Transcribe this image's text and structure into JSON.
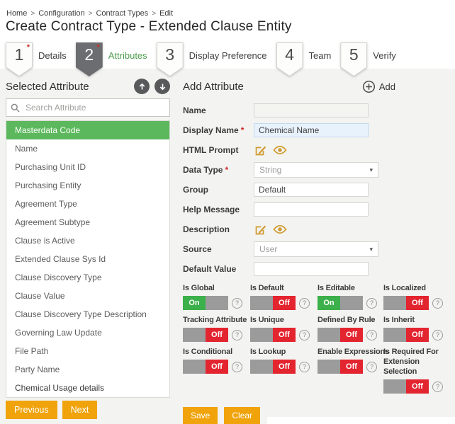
{
  "ui": {
    "required_marker": "*",
    "caret": "▾",
    "help_glyph": "?"
  },
  "breadcrumb": {
    "separator": ">",
    "items": [
      "Home",
      "Configuration",
      "Contract Types",
      "Edit"
    ]
  },
  "page_title": "Create Contract Type - Extended Clause Entity",
  "steps": [
    {
      "number": "1",
      "label": "Details",
      "required": true,
      "active": false
    },
    {
      "number": "2",
      "label": "Attributes",
      "required": true,
      "active": true
    },
    {
      "number": "3",
      "label": "Display Preference",
      "required": false,
      "active": false
    },
    {
      "number": "4",
      "label": "Team",
      "required": false,
      "active": false
    },
    {
      "number": "5",
      "label": "Verify",
      "required": false,
      "active": false
    }
  ],
  "left_panel": {
    "title": "Selected Attribute",
    "search_placeholder": "Search Attribute",
    "selected_index": 0,
    "current_index": 14,
    "items": [
      "Masterdata Code",
      "Name",
      "Purchasing Unit ID",
      "Purchasing Entity",
      "Agreement Type",
      "Agreement Subtype",
      "Clause is Active",
      "Extended Clause Sys Id",
      "Clause Discovery Type",
      "Clause Value",
      "Clause Discovery Type Description",
      "Governing Law Update",
      "File Path",
      "Party Name",
      "Chemical Usage details"
    ]
  },
  "form": {
    "title": "Add Attribute",
    "add_button_label": "Add",
    "fields": {
      "name": {
        "label": "Name",
        "value": ""
      },
      "display_name": {
        "label": "Display Name",
        "required": true,
        "value": "Chemical Name"
      },
      "html_prompt": {
        "label": "HTML Prompt"
      },
      "data_type": {
        "label": "Data Type",
        "required": true,
        "value": "String"
      },
      "group": {
        "label": "Group",
        "value": "Default"
      },
      "help_message": {
        "label": "Help Message",
        "value": ""
      },
      "description": {
        "label": "Description"
      },
      "source": {
        "label": "Source",
        "value": "User"
      },
      "default_value": {
        "label": "Default Value",
        "value": ""
      }
    },
    "toggles": [
      {
        "label": "Is Global",
        "state": "On"
      },
      {
        "label": "Is Default",
        "state": "Off"
      },
      {
        "label": "Is Editable",
        "state": "On"
      },
      {
        "label": "Is Localized",
        "state": "Off"
      },
      {
        "label": "Tracking Attribute",
        "state": "Off"
      },
      {
        "label": "Is Unique",
        "state": "Off"
      },
      {
        "label": "Defined By Rule",
        "state": "Off"
      },
      {
        "label": "Is Inherit",
        "state": "Off"
      },
      {
        "label": "Is Conditional",
        "state": "Off"
      },
      {
        "label": "Is Lookup",
        "state": "Off"
      },
      {
        "label": "Enable Expressions",
        "state": "Off"
      },
      {
        "label": "Is Required For Extension Selection",
        "state": "Off"
      }
    ],
    "save_label": "Save",
    "clear_label": "Clear"
  },
  "footer": {
    "previous_label": "Previous",
    "next_label": "Next"
  },
  "colors": {
    "accent_orange": "#f0a30a",
    "selected_green": "#5cb85c",
    "toggle_on_green": "#3cb04a",
    "toggle_off_red": "#e32530",
    "active_step_gray": "#6c6d70",
    "step_label_green": "#4f9e4f",
    "icon_gold": "#cf9b2f"
  }
}
